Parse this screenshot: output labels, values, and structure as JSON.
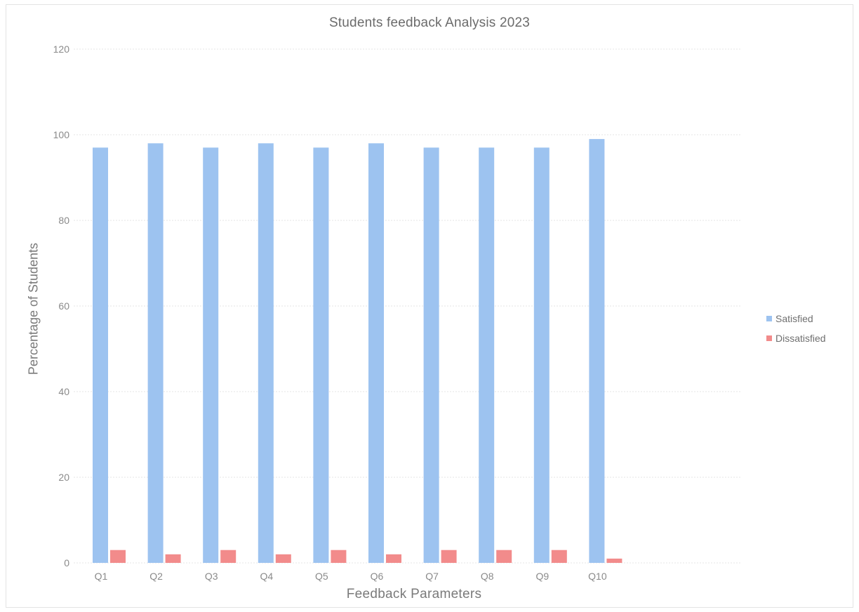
{
  "chart_data": {
    "type": "bar",
    "title": "Students feedback Analysis 2023",
    "xlabel": "Feedback Parameters",
    "ylabel": "Percentage of Students",
    "categories": [
      "Q1",
      "Q2",
      "Q3",
      "Q4",
      "Q5",
      "Q6",
      "Q7",
      "Q8",
      "Q9",
      "Q10"
    ],
    "series": [
      {
        "name": "Satisfied",
        "color": "#9dc3f0",
        "values": [
          97,
          98,
          97,
          98,
          97,
          98,
          97,
          97,
          97,
          99
        ]
      },
      {
        "name": "Dissatisfied",
        "color": "#f28b8b",
        "values": [
          3,
          2,
          3,
          2,
          3,
          2,
          3,
          3,
          3,
          1
        ]
      }
    ],
    "ylim": [
      0,
      120
    ],
    "yticks": [
      "0",
      "20",
      "40",
      "60",
      "80",
      "100",
      "120"
    ],
    "grid": true,
    "legend_position": "right"
  }
}
